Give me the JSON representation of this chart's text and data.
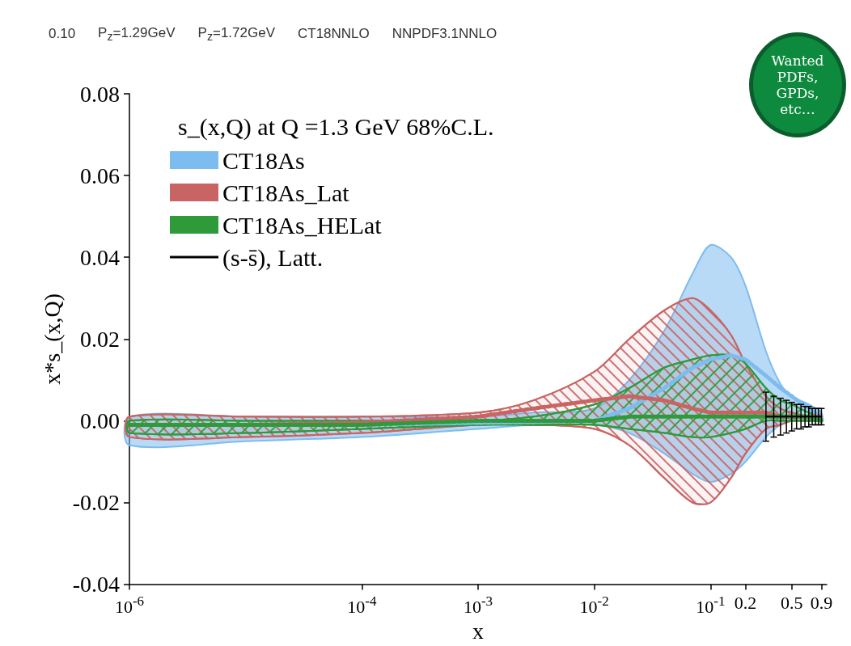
{
  "chart_data": {
    "type": "line",
    "legend_title": "s_(x,Q) at Q =1.3 GeV 68%C.L.",
    "xlabel": "x",
    "ylabel": "x*s_(x,Q)",
    "log": "x",
    "xlim": [
      1e-06,
      1
    ],
    "ylim": [
      -0.04,
      0.08
    ],
    "xticks": [
      {
        "value": 1e-06,
        "label": "10$^{-6}$"
      },
      {
        "value": 0.0001,
        "label": "10$^{-4}$"
      },
      {
        "value": 0.001,
        "label": "10$^{-3}$"
      },
      {
        "value": 0.01,
        "label": "10$^{-2}$"
      },
      {
        "value": 0.1,
        "label": "10$^{-1}$"
      },
      0.2,
      0.5,
      0.9
    ],
    "yticks": [
      -0.04,
      -0.02,
      {
        "value": 0,
        "label": "0.00"
      },
      0.02,
      0.04,
      0.06,
      0.08
    ],
    "legend": "top left",
    "grid": false,
    "marker": "none",
    "series": [
      {
        "name": "CT18As",
        "color": "#7dbcee",
        "line_style": "dotted",
        "x": [
          1e-06,
          1e-05,
          0.0001,
          0.001,
          0.003,
          0.01,
          0.02,
          0.04,
          0.07,
          0.1,
          0.15,
          0.2,
          0.3,
          0.4,
          0.5,
          0.7,
          0.9
        ],
        "values": [
          -0.001,
          -0.001,
          -0.001,
          -0.0005,
          -0.0003,
          0,
          0.003,
          0.008,
          0.013,
          0.015,
          0.016,
          0.015,
          0.011,
          0.008,
          0.006,
          0.003,
          0.001
        ],
        "upper": [
          0.001,
          0.001,
          0.001,
          0.001,
          0.002,
          0.003,
          0.01,
          0.022,
          0.036,
          0.043,
          0.04,
          0.033,
          0.017,
          0.009,
          0.006,
          0.004,
          0.002
        ],
        "lower": [
          -0.006,
          -0.005,
          -0.004,
          -0.002,
          -0.001,
          -0.001,
          -0.003,
          -0.008,
          -0.013,
          -0.015,
          -0.013,
          -0.01,
          -0.004,
          -0.001,
          0,
          0,
          0
        ]
      },
      {
        "name": "CT18As_Lat",
        "color": "#c96464",
        "line_style": "dotted",
        "x": [
          1e-06,
          1e-05,
          0.0001,
          0.001,
          0.003,
          0.01,
          0.02,
          0.04,
          0.07,
          0.1,
          0.15,
          0.2,
          0.3,
          0.4,
          0.5,
          0.7,
          0.9
        ],
        "values": [
          -0.001,
          -0.001,
          -0.0005,
          0.001,
          0.003,
          0.005,
          0.006,
          0.005,
          0.003,
          0.002,
          0.002,
          0.002,
          0.002,
          0.001,
          0.001,
          0.001,
          0.001
        ],
        "upper": [
          0.001,
          0.001,
          0.001,
          0.002,
          0.005,
          0.012,
          0.02,
          0.027,
          0.03,
          0.027,
          0.021,
          0.014,
          0.006,
          0.003,
          0.002,
          0.001,
          0.001
        ],
        "lower": [
          -0.004,
          -0.004,
          -0.003,
          -0.001,
          -0.001,
          -0.002,
          -0.006,
          -0.014,
          -0.02,
          -0.02,
          -0.014,
          -0.008,
          -0.002,
          -0.001,
          0,
          0,
          0
        ]
      },
      {
        "name": "CT18As_HELat",
        "color": "#2e9a3a",
        "line_style": "dotted",
        "x": [
          1e-06,
          1e-05,
          0.0001,
          0.001,
          0.003,
          0.01,
          0.02,
          0.04,
          0.07,
          0.1,
          0.15,
          0.2,
          0.3,
          0.4,
          0.5,
          0.7,
          0.9
        ],
        "values": [
          -0.001,
          -0.001,
          -0.001,
          0,
          0,
          0,
          0.001,
          0.001,
          0.001,
          0.001,
          0.001,
          0.001,
          0.001,
          0.001,
          0.001,
          0.001,
          0
        ],
        "upper": [
          0,
          0,
          0,
          0,
          0.001,
          0.004,
          0.008,
          0.013,
          0.015,
          0.016,
          0.016,
          0.014,
          0.008,
          0.005,
          0.004,
          0.002,
          0.001
        ],
        "lower": [
          -0.003,
          -0.003,
          -0.002,
          -0.001,
          -0.001,
          -0.001,
          -0.002,
          -0.003,
          -0.004,
          -0.004,
          -0.003,
          -0.002,
          0,
          0,
          0,
          0,
          0
        ]
      },
      {
        "name": "(s-s̄), Latt.",
        "color": "#000000",
        "line_style": "solid",
        "x": [
          0.3,
          0.35,
          0.4,
          0.45,
          0.5,
          0.55,
          0.6,
          0.65,
          0.7,
          0.75,
          0.8,
          0.85,
          0.9
        ],
        "values": [
          0.001,
          0.001,
          0.001,
          0.001,
          0.001,
          0.001,
          0.001,
          0.001,
          0.001,
          0.001,
          0.001,
          0.001,
          0.001
        ],
        "errors": [
          0.006,
          0.005,
          0.0045,
          0.004,
          0.0035,
          0.003,
          0.003,
          0.0025,
          0.0025,
          0.002,
          0.002,
          0.002,
          0.002
        ]
      }
    ],
    "annotations": [
      "0.10",
      "P$_{z}$=1.29GeV",
      "P$_{z}$=1.72GeV",
      "CT18NNLO",
      "NNPDF3.1NNLO",
      "Wanted PDFs, GPDs, etc…"
    ]
  }
}
